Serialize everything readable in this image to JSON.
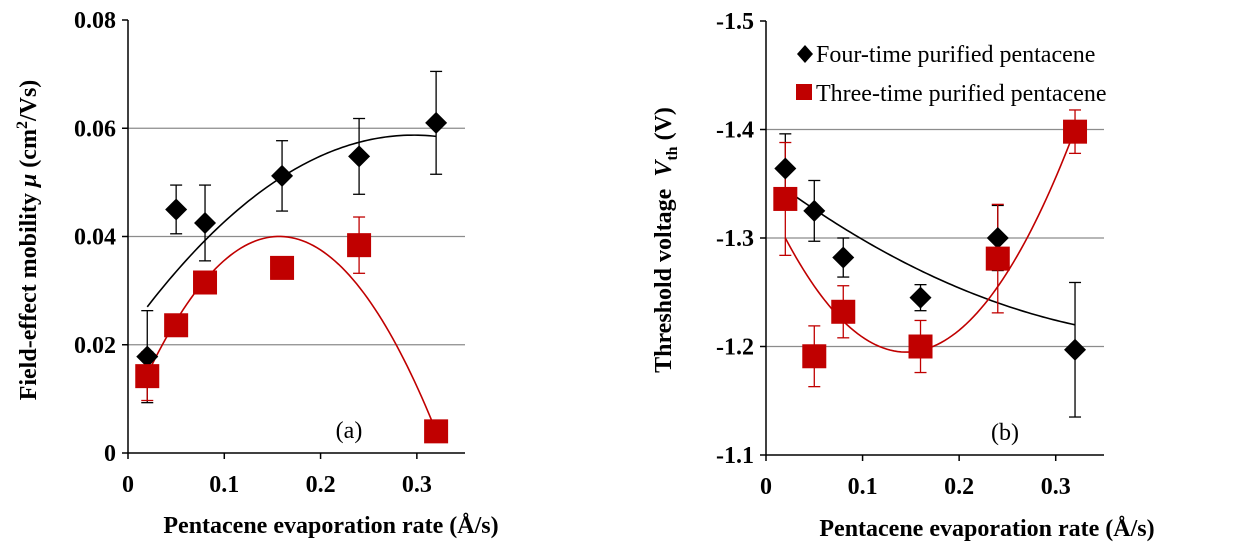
{
  "chart_data": [
    {
      "type": "scatter",
      "panel_label": "(a)",
      "xlabel": "Pentacene evaporation rate (Å/s)",
      "ylabel_prefix": "Field-effect mobility ",
      "ylabel_symbol": "μ",
      "ylabel_units_pre": " (cm",
      "ylabel_units_sup": "2",
      "ylabel_units_post": "/Vs)",
      "xlim": [
        0,
        0.35
      ],
      "ylim": [
        0,
        0.08
      ],
      "x_ticks": [
        0,
        0.1,
        0.2,
        0.3
      ],
      "x_tick_labels": [
        "0",
        "0.1",
        "0.2",
        "0.3"
      ],
      "y_ticks": [
        0,
        0.02,
        0.04,
        0.06,
        0.08
      ],
      "y_tick_labels": [
        "0",
        "0.02",
        "0.04",
        "0.06",
        "0.08"
      ],
      "gridlines_y": [
        0.02,
        0.04,
        0.06
      ],
      "legend": "none",
      "series": [
        {
          "marker": "diamond",
          "color": "#000000",
          "x": [
            0.02,
            0.05,
            0.08,
            0.16,
            0.24,
            0.32
          ],
          "y": [
            0.0178,
            0.045,
            0.0425,
            0.0512,
            0.0548,
            0.061
          ],
          "err": [
            0.0085,
            0.0045,
            0.007,
            0.0065,
            0.007,
            0.0095
          ],
          "fit": {
            "type": "poly2",
            "color": "#000000",
            "x_range": [
              0.02,
              0.32
            ],
            "points": [
              [
                0.02,
                0.027
              ],
              [
                0.16,
                0.051
              ],
              [
                0.32,
                0.0585
              ]
            ]
          }
        },
        {
          "marker": "square",
          "color": "#c00000",
          "x": [
            0.02,
            0.05,
            0.08,
            0.16,
            0.24,
            0.32
          ],
          "y": [
            0.0142,
            0.0236,
            0.0315,
            0.0342,
            0.0384,
            0.004
          ],
          "err": [
            0.0045,
            0.0,
            0.0,
            0.0,
            0.0052,
            0.0
          ],
          "fit": {
            "type": "poly2",
            "color": "#c00000",
            "x_range": [
              0.02,
              0.32
            ],
            "points": [
              [
                0.02,
                0.0145
              ],
              [
                0.16,
                0.04
              ],
              [
                0.32,
                0.004
              ]
            ]
          }
        }
      ]
    },
    {
      "type": "scatter",
      "panel_label": "(b)",
      "xlabel": "Pentacene evaporation rate (Å/s)",
      "ylabel_prefix": "Threshold voltage  ",
      "ylabel_symbol": "V",
      "ylabel_sub": "th",
      "ylabel_units": " (V)",
      "xlim": [
        0,
        0.35
      ],
      "ylim": [
        -1.1,
        -1.5
      ],
      "x_ticks": [
        0,
        0.1,
        0.2,
        0.3
      ],
      "x_tick_labels": [
        "0",
        "0.1",
        "0.2",
        "0.3"
      ],
      "y_ticks": [
        -1.1,
        -1.2,
        -1.3,
        -1.4,
        -1.5
      ],
      "y_tick_labels": [
        "-1.1",
        "-1.2",
        "-1.3",
        "-1.4",
        "-1.5"
      ],
      "gridlines_y": [
        -1.2,
        -1.3,
        -1.4
      ],
      "legend": "top-right",
      "series": [
        {
          "name": "Four-time purified pentacene",
          "marker": "diamond",
          "color": "#000000",
          "x": [
            0.02,
            0.05,
            0.08,
            0.16,
            0.24,
            0.32
          ],
          "y": [
            -1.364,
            -1.325,
            -1.282,
            -1.245,
            -1.3,
            -1.197
          ],
          "err": [
            0.032,
            0.028,
            0.018,
            0.012,
            0.03,
            0.062
          ],
          "fit": {
            "type": "poly2",
            "color": "#000000",
            "x_range": [
              0.02,
              0.32
            ],
            "points": [
              [
                0.02,
                -1.345
              ],
              [
                0.16,
                -1.27
              ],
              [
                0.32,
                -1.22
              ]
            ]
          }
        },
        {
          "name": "Three-time purified pentacene",
          "marker": "square",
          "color": "#c00000",
          "x": [
            0.02,
            0.05,
            0.08,
            0.16,
            0.24,
            0.32
          ],
          "y": [
            -1.336,
            -1.191,
            -1.232,
            -1.2,
            -1.281,
            -1.398
          ],
          "err": [
            0.052,
            0.028,
            0.024,
            0.024,
            0.05,
            0.02
          ],
          "fit": {
            "type": "poly2",
            "color": "#c00000",
            "x_range": [
              0.02,
              0.32
            ],
            "points": [
              [
                0.02,
                -1.3
              ],
              [
                0.15,
                -1.195
              ],
              [
                0.32,
                -1.4
              ]
            ]
          }
        }
      ]
    }
  ]
}
